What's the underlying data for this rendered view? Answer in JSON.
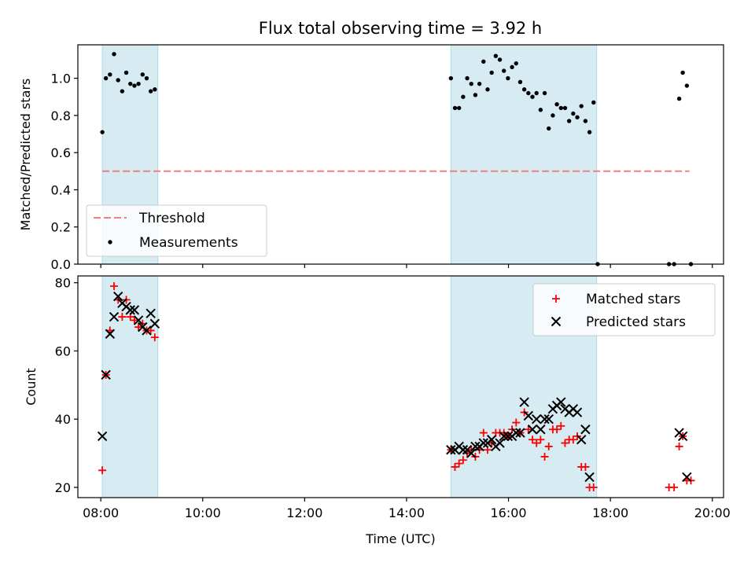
{
  "title": "Flux total observing time = 3.92 h",
  "chart_data": [
    {
      "type": "scatter",
      "ylabel": "Matched/Predicted stars",
      "xlim": [
        7.55,
        20.22
      ],
      "ylim": [
        0,
        1.18
      ],
      "yticks": [
        0.0,
        0.2,
        0.4,
        0.6,
        0.8,
        1.0
      ],
      "ytick_labels": [
        "0.0",
        "0.2",
        "0.4",
        "0.6",
        "0.8",
        "1.0"
      ],
      "shaded_intervals": [
        [
          8.03,
          9.12
        ],
        [
          14.87,
          17.73
        ]
      ],
      "shade_color": "#add8e6",
      "legend_position": "lower-left",
      "threshold": {
        "name": "Threshold",
        "y": 0.5,
        "x_range": [
          8.03,
          19.55
        ],
        "color": "#f08080"
      },
      "series": [
        {
          "name": "Measurements",
          "marker": "dot",
          "color": "#000000",
          "points": [
            [
              8.03,
              0.71
            ],
            [
              8.1,
              1.0
            ],
            [
              8.18,
              1.02
            ],
            [
              8.26,
              1.13
            ],
            [
              8.34,
              0.99
            ],
            [
              8.42,
              0.93
            ],
            [
              8.5,
              1.03
            ],
            [
              8.58,
              0.97
            ],
            [
              8.66,
              0.96
            ],
            [
              8.74,
              0.97
            ],
            [
              8.82,
              1.02
            ],
            [
              8.9,
              1.0
            ],
            [
              8.98,
              0.93
            ],
            [
              9.06,
              0.94
            ],
            [
              14.87,
              1.0
            ],
            [
              14.95,
              0.84
            ],
            [
              15.03,
              0.84
            ],
            [
              15.11,
              0.9
            ],
            [
              15.19,
              1.0
            ],
            [
              15.27,
              0.97
            ],
            [
              15.35,
              0.91
            ],
            [
              15.43,
              0.97
            ],
            [
              15.51,
              1.09
            ],
            [
              15.59,
              0.94
            ],
            [
              15.67,
              1.03
            ],
            [
              15.75,
              1.12
            ],
            [
              15.83,
              1.1
            ],
            [
              15.91,
              1.04
            ],
            [
              15.99,
              1.0
            ],
            [
              16.07,
              1.06
            ],
            [
              16.15,
              1.08
            ],
            [
              16.23,
              0.98
            ],
            [
              16.31,
              0.94
            ],
            [
              16.39,
              0.92
            ],
            [
              16.47,
              0.9
            ],
            [
              16.55,
              0.92
            ],
            [
              16.63,
              0.83
            ],
            [
              16.71,
              0.92
            ],
            [
              16.79,
              0.73
            ],
            [
              16.87,
              0.8
            ],
            [
              16.95,
              0.86
            ],
            [
              17.03,
              0.84
            ],
            [
              17.11,
              0.84
            ],
            [
              17.19,
              0.77
            ],
            [
              17.27,
              0.81
            ],
            [
              17.35,
              0.79
            ],
            [
              17.43,
              0.85
            ],
            [
              17.51,
              0.77
            ],
            [
              17.59,
              0.71
            ],
            [
              17.67,
              0.87
            ],
            [
              17.75,
              0.0
            ],
            [
              19.15,
              0.0
            ],
            [
              19.25,
              0.0
            ],
            [
              19.35,
              0.89
            ],
            [
              19.42,
              1.03
            ],
            [
              19.5,
              0.96
            ],
            [
              19.58,
              0.0
            ]
          ]
        }
      ]
    },
    {
      "type": "scatter",
      "xlabel": "Time (UTC)",
      "ylabel": "Count",
      "xlim": [
        7.55,
        20.22
      ],
      "ylim": [
        17,
        82
      ],
      "xticks": [
        8,
        10,
        12,
        14,
        16,
        18,
        20
      ],
      "xtick_labels": [
        "08:00",
        "10:00",
        "12:00",
        "14:00",
        "16:00",
        "18:00",
        "20:00"
      ],
      "yticks": [
        20,
        40,
        60,
        80
      ],
      "ytick_labels": [
        "20",
        "40",
        "60",
        "80"
      ],
      "shaded_intervals": [
        [
          8.03,
          9.12
        ],
        [
          14.87,
          17.73
        ]
      ],
      "shade_color": "#add8e6",
      "legend_position": "upper-right",
      "series": [
        {
          "name": "Matched stars",
          "marker": "plus",
          "color": "#ff0000",
          "points": [
            [
              8.03,
              25
            ],
            [
              8.1,
              53
            ],
            [
              8.18,
              66
            ],
            [
              8.26,
              79
            ],
            [
              8.34,
              75
            ],
            [
              8.42,
              70
            ],
            [
              8.5,
              75
            ],
            [
              8.58,
              70
            ],
            [
              8.66,
              69
            ],
            [
              8.74,
              67
            ],
            [
              8.82,
              68
            ],
            [
              8.9,
              66
            ],
            [
              8.98,
              66
            ],
            [
              9.06,
              64
            ],
            [
              14.87,
              31
            ],
            [
              14.95,
              26
            ],
            [
              15.03,
              27
            ],
            [
              15.11,
              28
            ],
            [
              15.19,
              30
            ],
            [
              15.27,
              31
            ],
            [
              15.35,
              29
            ],
            [
              15.43,
              31
            ],
            [
              15.51,
              36
            ],
            [
              15.59,
              31
            ],
            [
              15.67,
              33
            ],
            [
              15.75,
              36
            ],
            [
              15.83,
              36
            ],
            [
              15.91,
              36
            ],
            [
              15.99,
              35
            ],
            [
              16.07,
              37
            ],
            [
              16.15,
              39
            ],
            [
              16.23,
              36
            ],
            [
              16.31,
              42
            ],
            [
              16.39,
              37
            ],
            [
              16.47,
              34
            ],
            [
              16.55,
              33
            ],
            [
              16.63,
              34
            ],
            [
              16.71,
              29
            ],
            [
              16.79,
              32
            ],
            [
              16.87,
              37
            ],
            [
              16.95,
              37
            ],
            [
              17.03,
              38
            ],
            [
              17.11,
              33
            ],
            [
              17.19,
              34
            ],
            [
              17.27,
              34
            ],
            [
              17.35,
              35
            ],
            [
              17.43,
              26
            ],
            [
              17.51,
              26
            ],
            [
              17.59,
              20
            ],
            [
              17.67,
              20
            ],
            [
              19.15,
              20
            ],
            [
              19.25,
              20
            ],
            [
              19.35,
              32
            ],
            [
              19.42,
              35
            ],
            [
              19.5,
              22
            ],
            [
              19.58,
              22
            ]
          ]
        },
        {
          "name": "Predicted stars",
          "marker": "x",
          "color": "#000000",
          "points": [
            [
              8.03,
              35
            ],
            [
              8.1,
              53
            ],
            [
              8.18,
              65
            ],
            [
              8.26,
              70
            ],
            [
              8.34,
              76
            ],
            [
              8.42,
              74
            ],
            [
              8.5,
              73
            ],
            [
              8.58,
              72
            ],
            [
              8.66,
              72
            ],
            [
              8.74,
              69
            ],
            [
              8.82,
              67
            ],
            [
              8.9,
              66
            ],
            [
              8.98,
              71
            ],
            [
              9.06,
              68
            ],
            [
              14.87,
              31
            ],
            [
              14.95,
              31
            ],
            [
              15.03,
              32
            ],
            [
              15.11,
              31
            ],
            [
              15.19,
              31
            ],
            [
              15.27,
              30
            ],
            [
              15.35,
              32
            ],
            [
              15.43,
              32
            ],
            [
              15.51,
              33
            ],
            [
              15.59,
              33
            ],
            [
              15.67,
              34
            ],
            [
              15.75,
              32
            ],
            [
              15.83,
              33
            ],
            [
              15.91,
              35
            ],
            [
              15.99,
              35
            ],
            [
              16.07,
              35
            ],
            [
              16.15,
              36
            ],
            [
              16.23,
              36
            ],
            [
              16.31,
              45
            ],
            [
              16.39,
              41
            ],
            [
              16.47,
              37
            ],
            [
              16.55,
              40
            ],
            [
              16.63,
              37
            ],
            [
              16.71,
              40
            ],
            [
              16.79,
              40
            ],
            [
              16.87,
              43
            ],
            [
              16.95,
              44
            ],
            [
              17.03,
              45
            ],
            [
              17.11,
              43
            ],
            [
              17.19,
              42
            ],
            [
              17.27,
              43
            ],
            [
              17.35,
              42
            ],
            [
              17.43,
              34
            ],
            [
              17.51,
              37
            ],
            [
              17.59,
              23
            ],
            [
              19.35,
              36
            ],
            [
              19.42,
              35
            ],
            [
              19.5,
              23
            ]
          ]
        }
      ]
    }
  ]
}
